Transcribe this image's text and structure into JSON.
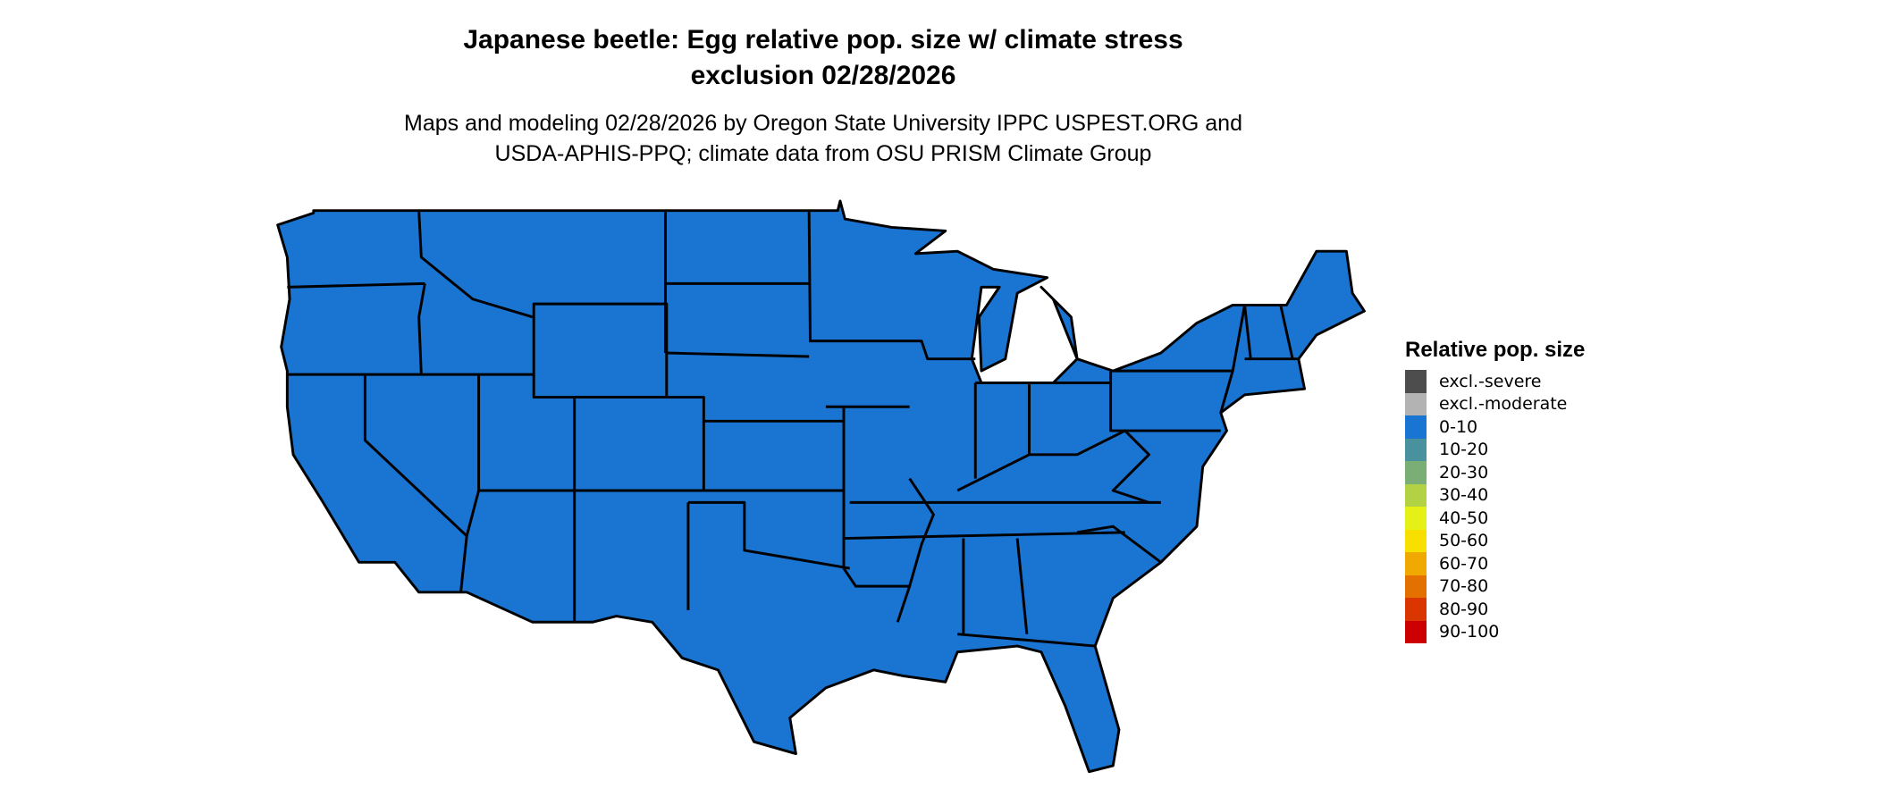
{
  "header": {
    "title_line1": "Japanese beetle: Egg relative pop. size w/ climate stress",
    "title_line2": "exclusion 02/28/2026",
    "subtitle_line1": "Maps and modeling 02/28/2026 by Oregon State University IPPC USPEST.ORG and",
    "subtitle_line2": "USDA-APHIS-PPQ; climate data from OSU PRISM Climate Group"
  },
  "map": {
    "region": "Contiguous United States",
    "fill_category": "0-10",
    "fill_color": "#1974D2",
    "border_color": "#000000"
  },
  "legend": {
    "title": "Relative pop. size",
    "items": [
      {
        "label": "excl.-severe",
        "color": "#4D4D4D"
      },
      {
        "label": "excl.-moderate",
        "color": "#B3B3B3"
      },
      {
        "label": "0-10",
        "color": "#1974D2"
      },
      {
        "label": "10-20",
        "color": "#49919C"
      },
      {
        "label": "20-30",
        "color": "#7BAE74"
      },
      {
        "label": "30-40",
        "color": "#B3D144"
      },
      {
        "label": "40-50",
        "color": "#E4F016"
      },
      {
        "label": "50-60",
        "color": "#F7E000"
      },
      {
        "label": "60-70",
        "color": "#F0A900"
      },
      {
        "label": "70-80",
        "color": "#E47000"
      },
      {
        "label": "80-90",
        "color": "#DA3600"
      },
      {
        "label": "90-100",
        "color": "#CC0000"
      }
    ]
  }
}
